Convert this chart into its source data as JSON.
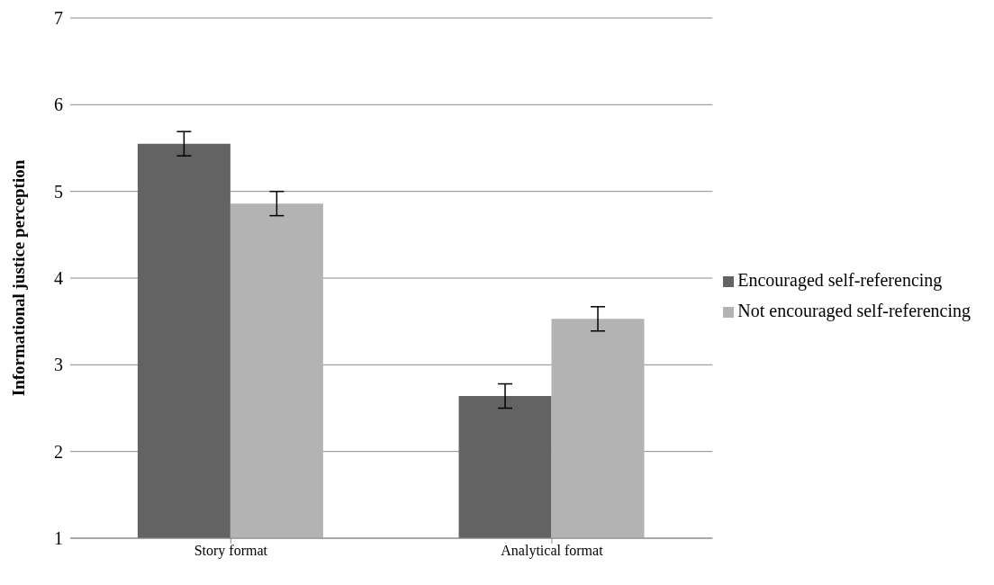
{
  "chart_data": {
    "type": "bar",
    "ylabel": "Informational justice perception",
    "categories": [
      "Story format",
      "Analytical format"
    ],
    "series": [
      {
        "name": "Encouraged self-referencing",
        "color": "#636363",
        "values": [
          5.55,
          2.64
        ],
        "errors": [
          0.14,
          0.14
        ]
      },
      {
        "name": "Not encouraged self-referencing",
        "color": "#b3b3b3",
        "values": [
          4.86,
          3.53
        ],
        "errors": [
          0.14,
          0.14
        ]
      }
    ],
    "ylim": [
      1,
      7
    ],
    "yticks": [
      1,
      2,
      3,
      4,
      5,
      6,
      7
    ],
    "grid": "y",
    "legend": "right"
  }
}
